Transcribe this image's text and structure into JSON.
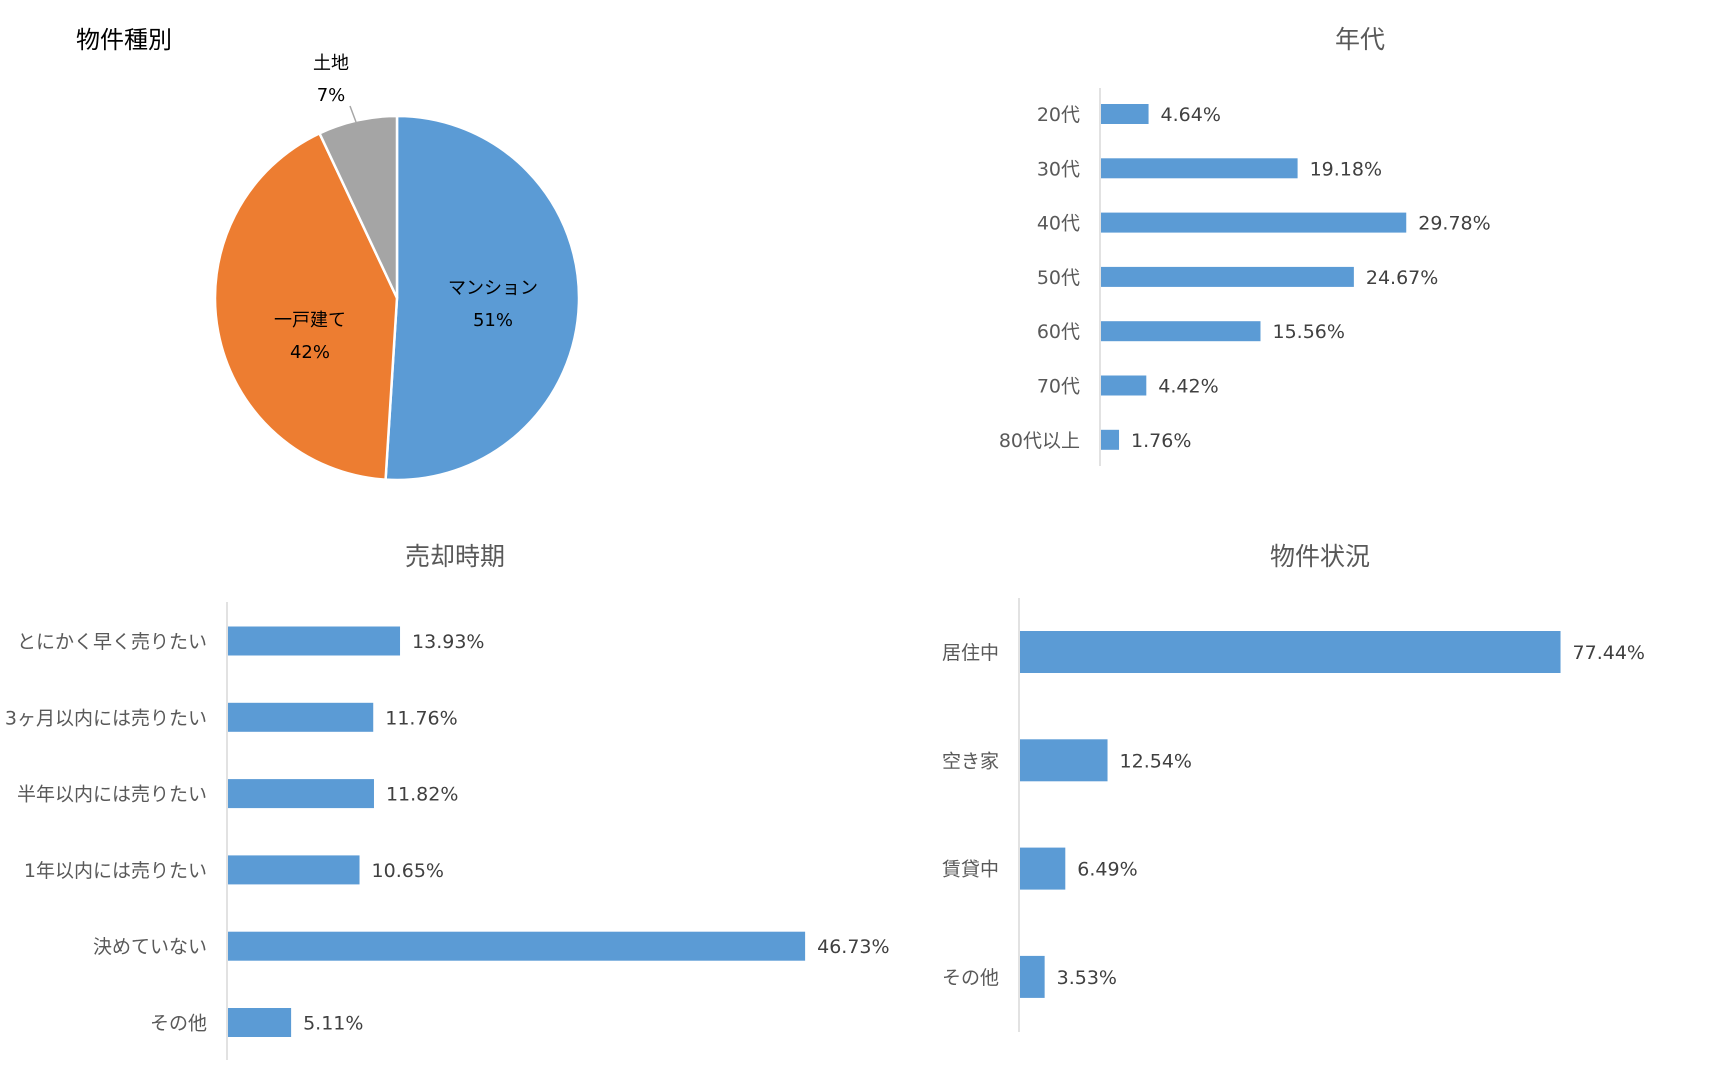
{
  "colors": {
    "bar": "#5b9bd5",
    "pie": [
      "#5b9bd5",
      "#ed7d31",
      "#a5a5a5"
    ]
  },
  "chart_data": [
    {
      "type": "pie",
      "title": "物件種別",
      "categories": [
        "マンション",
        "一戸建て",
        "土地"
      ],
      "values": [
        51,
        42,
        7
      ],
      "labels": [
        "51%",
        "42%",
        "7%"
      ]
    },
    {
      "type": "bar",
      "orientation": "horizontal",
      "title": "年代",
      "categories": [
        "20代",
        "30代",
        "40代",
        "50代",
        "60代",
        "70代",
        "80代以上"
      ],
      "values": [
        4.64,
        19.18,
        29.78,
        24.67,
        15.56,
        4.42,
        1.76
      ],
      "labels": [
        "4.64%",
        "19.18%",
        "29.78%",
        "24.67%",
        "15.56%",
        "4.42%",
        "1.76%"
      ]
    },
    {
      "type": "bar",
      "orientation": "horizontal",
      "title": "売却時期",
      "categories": [
        "とにかく早く売りたい",
        "3ヶ月以内には売りたい",
        "半年以内には売りたい",
        "1年以内には売りたい",
        "決めていない",
        "その他"
      ],
      "values": [
        13.93,
        11.76,
        11.82,
        10.65,
        46.73,
        5.11
      ],
      "labels": [
        "13.93%",
        "11.76%",
        "11.82%",
        "10.65%",
        "46.73%",
        "5.11%"
      ]
    },
    {
      "type": "bar",
      "orientation": "horizontal",
      "title": "物件状況",
      "categories": [
        "居住中",
        "空き家",
        "賃貸中",
        "その他"
      ],
      "values": [
        77.44,
        12.54,
        6.49,
        3.53
      ],
      "labels": [
        "77.44%",
        "12.54%",
        "6.49%",
        "3.53%"
      ]
    }
  ]
}
